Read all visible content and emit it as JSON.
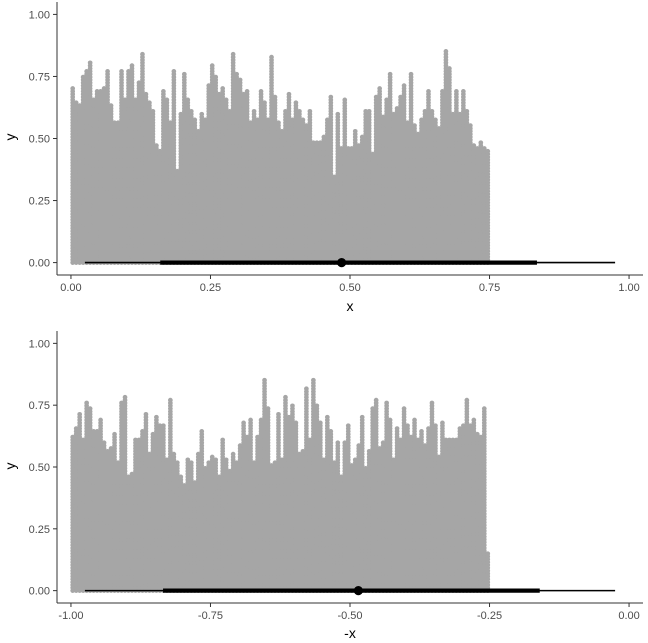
{
  "chart_data": [
    {
      "type": "dotplot",
      "xlabel": "x",
      "ylabel": "y",
      "xlim": [
        -0.025,
        1.025
      ],
      "ylim": [
        -0.05,
        1.05
      ],
      "x_ticks": [
        0,
        0.25,
        0.5,
        0.75,
        1.0
      ],
      "x_tick_labels": [
        "0.00",
        "0.25",
        "0.50",
        "0.75",
        "1.00"
      ],
      "y_ticks": [
        0,
        0.25,
        0.5,
        0.75,
        1.0
      ],
      "y_tick_labels": [
        "0.00",
        "0.25",
        "0.50",
        "0.75",
        "1.00"
      ],
      "bin_width": 0.00625,
      "stack_height_step": 0.0115,
      "column_tops": [
        0.71,
        0.65,
        0.64,
        0.75,
        0.78,
        0.81,
        0.66,
        0.7,
        0.69,
        0.71,
        0.78,
        0.64,
        0.57,
        0.57,
        0.78,
        0.66,
        0.78,
        0.8,
        0.66,
        0.73,
        0.84,
        0.68,
        0.65,
        0.61,
        0.48,
        0.45,
        0.7,
        0.66,
        0.57,
        0.78,
        0.37,
        0.6,
        0.76,
        0.66,
        0.62,
        0.58,
        0.54,
        0.6,
        0.58,
        0.72,
        0.8,
        0.75,
        0.68,
        0.71,
        0.66,
        0.61,
        0.84,
        0.77,
        0.74,
        0.68,
        0.7,
        0.57,
        0.62,
        0.58,
        0.69,
        0.65,
        0.58,
        0.83,
        0.67,
        0.57,
        0.54,
        0.62,
        0.68,
        0.58,
        0.65,
        0.61,
        0.58,
        0.56,
        0.61,
        0.49,
        0.49,
        0.49,
        0.51,
        0.58,
        0.67,
        0.35,
        0.6,
        0.47,
        0.66,
        0.46,
        0.46,
        0.54,
        0.48,
        0.51,
        0.61,
        0.61,
        0.44,
        0.67,
        0.71,
        0.59,
        0.66,
        0.77,
        0.6,
        0.63,
        0.67,
        0.72,
        0.57,
        0.76,
        0.56,
        0.52,
        0.58,
        0.62,
        0.7,
        0.62,
        0.58,
        0.55,
        0.69,
        0.86,
        0.79,
        0.6,
        0.69,
        0.6,
        0.69,
        0.61,
        0.56,
        0.48,
        0.47,
        0.49,
        0.46,
        0.45
      ],
      "interval": {
        "point": 0.485,
        "inner": [
          0.16,
          0.835
        ],
        "outer": [
          0.025,
          0.975
        ]
      }
    },
    {
      "type": "dotplot",
      "xlabel": "-x",
      "ylabel": "y",
      "xlim": [
        -1.025,
        0.025
      ],
      "ylim": [
        -0.05,
        1.05
      ],
      "x_ticks": [
        -1.0,
        -0.75,
        -0.5,
        -0.25,
        0
      ],
      "x_tick_labels": [
        "-1.00",
        "-0.75",
        "-0.50",
        "-0.25",
        "0.00"
      ],
      "y_ticks": [
        0,
        0.25,
        0.5,
        0.75,
        1.0
      ],
      "y_tick_labels": [
        "0.00",
        "0.25",
        "0.50",
        "0.75",
        "1.00"
      ],
      "bin_width": 0.00625,
      "stack_height_step": 0.0115,
      "column_tops": [
        0.63,
        0.66,
        0.72,
        0.62,
        0.76,
        0.74,
        0.65,
        0.65,
        0.7,
        0.6,
        0.57,
        0.58,
        0.64,
        0.52,
        0.76,
        0.79,
        0.47,
        0.48,
        0.62,
        0.62,
        0.65,
        0.72,
        0.56,
        0.64,
        0.71,
        0.67,
        0.67,
        0.54,
        0.78,
        0.56,
        0.52,
        0.47,
        0.43,
        0.54,
        0.52,
        0.44,
        0.56,
        0.65,
        0.5,
        0.52,
        0.55,
        0.53,
        0.47,
        0.62,
        0.53,
        0.49,
        0.56,
        0.52,
        0.59,
        0.68,
        0.63,
        0.7,
        0.52,
        0.63,
        0.7,
        0.86,
        0.74,
        0.51,
        0.52,
        0.72,
        0.54,
        0.79,
        0.71,
        0.75,
        0.68,
        0.56,
        0.57,
        0.82,
        0.61,
        0.86,
        0.75,
        0.68,
        0.54,
        0.71,
        0.65,
        0.52,
        0.6,
        0.46,
        0.6,
        0.67,
        0.51,
        0.54,
        0.59,
        0.71,
        0.5,
        0.57,
        0.74,
        0.78,
        0.58,
        0.6,
        0.77,
        0.7,
        0.54,
        0.66,
        0.61,
        0.74,
        0.67,
        0.63,
        0.69,
        0.61,
        0.65,
        0.59,
        0.66,
        0.76,
        0.67,
        0.55,
        0.68,
        0.61,
        0.61,
        0.62,
        0.62,
        0.66,
        0.67,
        0.78,
        0.67,
        0.7,
        0.64,
        0.63,
        0.74,
        0.15
      ],
      "interval": {
        "point": -0.485,
        "inner": [
          -0.835,
          -0.16
        ],
        "outer": [
          -0.975,
          -0.025
        ]
      }
    }
  ],
  "colors": {
    "dots": "#a6a6a6",
    "interval": "#000000",
    "axis": "#333333"
  }
}
